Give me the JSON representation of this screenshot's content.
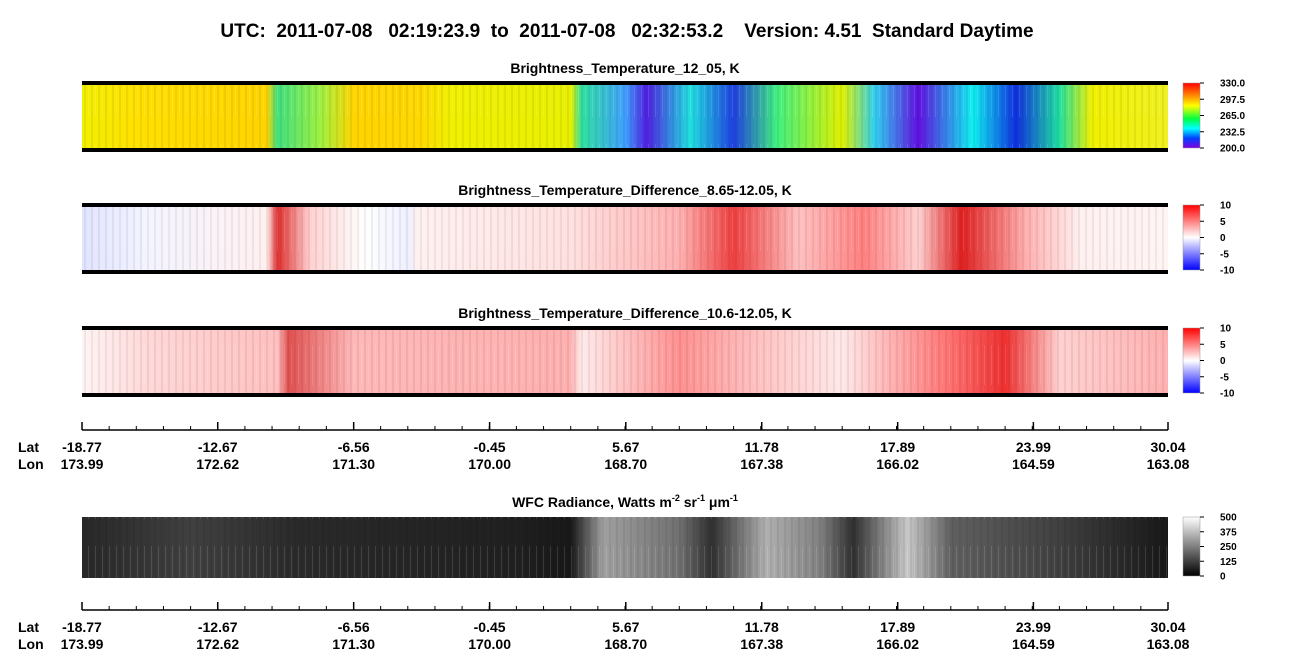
{
  "header": {
    "title": "UTC:  2011-07-08   02:19:23.9  to  2011-07-08   02:32:53.2    Version: 4.51  Standard Daytime"
  },
  "panels": [
    {
      "title": "Brightness_Temperature_12_05, K",
      "colorbar": {
        "range": [
          200,
          330
        ],
        "ticks": [
          {
            "value": 330,
            "label": "330.0"
          },
          297.5,
          {
            "value": 265,
            "label": "265.0"
          },
          232.5,
          {
            "value": 200,
            "label": "200.0"
          }
        ]
      }
    },
    {
      "title": "Brightness_Temperature_Difference_8.65-12.05, K",
      "colorbar": {
        "range": [
          -10,
          10
        ],
        "ticks": [
          10,
          5,
          0,
          -5,
          -10
        ]
      }
    },
    {
      "title": "Brightness_Temperature_Difference_10.6-12.05, K",
      "colorbar": {
        "range": [
          -10,
          10
        ],
        "ticks": [
          10,
          5,
          0,
          -5,
          -10
        ]
      }
    },
    {
      "title_parts": [
        "WFC Radiance, Watts m",
        "-2",
        " sr",
        "-1",
        " μm",
        "-1"
      ],
      "colorbar": {
        "range": [
          0,
          500
        ],
        "ticks": [
          500,
          375,
          250,
          125,
          0
        ]
      }
    }
  ],
  "axes": [
    {
      "lat_label": "Lat",
      "lon_label": "Lon",
      "xlim": [
        -18.77,
        30.04
      ],
      "lat_ticks": [
        -18.77,
        -12.67,
        -6.56,
        -0.45,
        5.67,
        11.78,
        17.89,
        23.99,
        30.04
      ],
      "lon_ticks": [
        173.99,
        172.62,
        {
          "value": 171.3,
          "label": "171.30"
        },
        {
          "value": 170,
          "label": "170.00"
        },
        {
          "value": 168.7,
          "label": "168.70"
        },
        167.38,
        166.02,
        164.59,
        163.08
      ]
    },
    {
      "lat_label": "Lat",
      "lon_label": "Lon",
      "xlim": [
        -18.77,
        30.04
      ],
      "lat_ticks": [
        -18.77,
        -12.67,
        -6.56,
        -0.45,
        5.67,
        11.78,
        17.89,
        23.99,
        30.04
      ],
      "lon_ticks": [
        173.99,
        172.62,
        {
          "value": 171.3,
          "label": "171.30"
        },
        {
          "value": 170,
          "label": "170.00"
        },
        {
          "value": 168.7,
          "label": "168.70"
        },
        167.38,
        166.02,
        164.59,
        163.08
      ]
    }
  ]
}
